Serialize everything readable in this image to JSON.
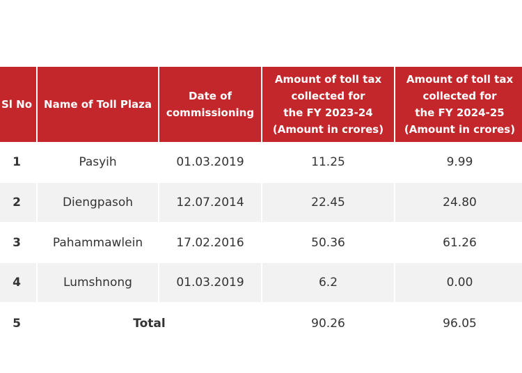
{
  "table": {
    "header": [
      [
        "Sl No"
      ],
      [
        "Name of Toll Plaza"
      ],
      [
        "Date of",
        "commissioning"
      ],
      [
        "Amount of toll tax",
        "collected for",
        "the FY 2023-24",
        "(Amount in crores)"
      ],
      [
        "Amount of toll tax",
        "collected for",
        "the FY 2024-25",
        "(Amount in crores)"
      ]
    ],
    "rows": [
      [
        "1",
        "Pasyih",
        "01.03.2019",
        "11.25",
        "9.99"
      ],
      [
        "2",
        "Diengpasoh",
        "12.07.2014",
        "22.45",
        "24.80"
      ],
      [
        "3",
        "Pahammawlein",
        "17.02.2016",
        "50.36",
        "61.26"
      ],
      [
        "4",
        "Lumshnong",
        "01.03.2019",
        "6.2",
        "0.00"
      ]
    ],
    "total": {
      "sl": "5",
      "label": "Total",
      "values": [
        "90.26",
        "96.05"
      ]
    }
  }
}
